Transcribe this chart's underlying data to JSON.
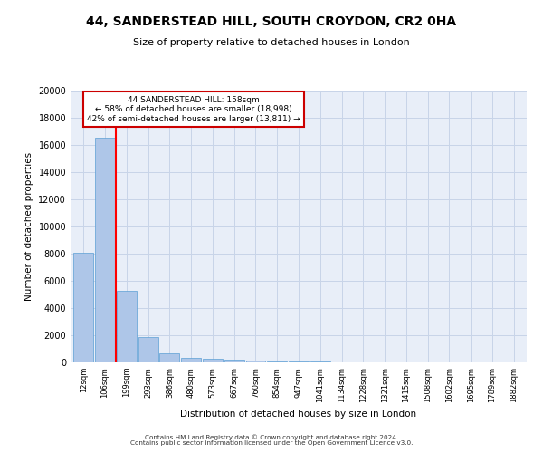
{
  "title": "44, SANDERSTEAD HILL, SOUTH CROYDON, CR2 0HA",
  "subtitle": "Size of property relative to detached houses in London",
  "xlabel": "Distribution of detached houses by size in London",
  "ylabel": "Number of detached properties",
  "bin_labels": [
    "12sqm",
    "106sqm",
    "199sqm",
    "293sqm",
    "386sqm",
    "480sqm",
    "573sqm",
    "667sqm",
    "760sqm",
    "854sqm",
    "947sqm",
    "1041sqm",
    "1134sqm",
    "1228sqm",
    "1321sqm",
    "1415sqm",
    "1508sqm",
    "1602sqm",
    "1695sqm",
    "1789sqm",
    "1882sqm"
  ],
  "bar_values": [
    8100,
    16500,
    5300,
    1850,
    650,
    350,
    280,
    200,
    150,
    100,
    60,
    40,
    25,
    15,
    10,
    8,
    5,
    4,
    3,
    2,
    0
  ],
  "bar_color": "#aec6e8",
  "bar_edge_color": "#5a9fd4",
  "grid_color": "#c8d4e8",
  "bg_color": "#e8eef8",
  "red_line_x": 1.52,
  "annotation_line1": "44 SANDERSTEAD HILL: 158sqm",
  "annotation_line2": "← 58% of detached houses are smaller (18,998)",
  "annotation_line3": "42% of semi-detached houses are larger (13,811) →",
  "annotation_box_color": "#cc0000",
  "footer_line1": "Contains HM Land Registry data © Crown copyright and database right 2024.",
  "footer_line2": "Contains public sector information licensed under the Open Government Licence v3.0.",
  "ylim": [
    0,
    20000
  ],
  "yticks": [
    0,
    2000,
    4000,
    6000,
    8000,
    10000,
    12000,
    14000,
    16000,
    18000,
    20000
  ]
}
